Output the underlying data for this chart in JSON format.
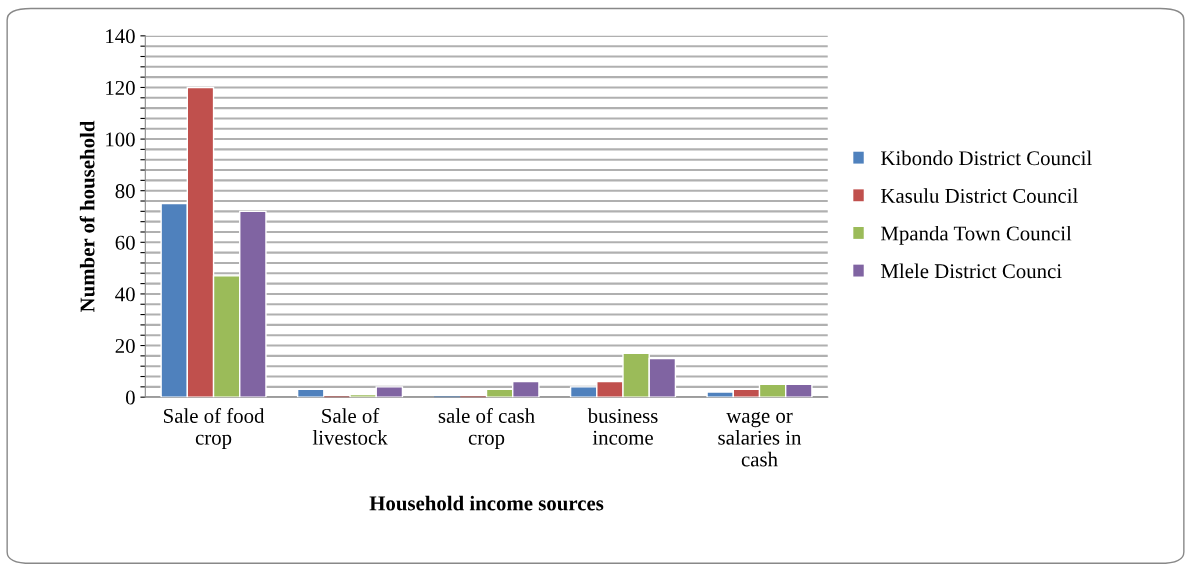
{
  "chart_data": {
    "type": "bar",
    "xlabel": "Household income sources",
    "ylabel": "Number of household",
    "categories": [
      "Sale of food\ncrop",
      "Sale of\nlivestock",
      "sale of cash\ncrop",
      "business\nincome",
      "wage or\nsalaries in\ncash"
    ],
    "series": [
      {
        "name": "Kibondo District Council",
        "color": "#4f81bd",
        "values": [
          75,
          3,
          0,
          4,
          2
        ]
      },
      {
        "name": "Kasulu District Council",
        "color": "#c0504d",
        "values": [
          120,
          0,
          0,
          6,
          3
        ]
      },
      {
        "name": "Mpanda Town Council",
        "color": "#9bbb59",
        "values": [
          47,
          1,
          3,
          17,
          5
        ]
      },
      {
        "name": "Mlele District Counci",
        "color": "#8064a2",
        "values": [
          72,
          4,
          6,
          15,
          5
        ]
      }
    ],
    "ylim": [
      0,
      140
    ],
    "yticks": [
      0,
      {
        "value": 4,
        "label": null
      },
      {
        "value": 8,
        "label": null
      },
      {
        "value": 12,
        "label": null
      },
      {
        "value": 16,
        "label": null
      },
      20,
      {
        "value": 24,
        "label": null
      },
      {
        "value": 28,
        "label": null
      },
      {
        "value": 32,
        "label": null
      },
      {
        "value": 36,
        "label": null
      },
      40,
      {
        "value": 44,
        "label": null
      },
      {
        "value": 48,
        "label": null
      },
      {
        "value": 52,
        "label": null
      },
      {
        "value": 56,
        "label": null
      },
      60,
      {
        "value": 64,
        "label": null
      },
      {
        "value": 68,
        "label": null
      },
      {
        "value": 72,
        "label": null
      },
      {
        "value": 76,
        "label": null
      },
      80,
      {
        "value": 84,
        "label": null
      },
      {
        "value": 88,
        "label": null
      },
      {
        "value": 92,
        "label": null
      },
      {
        "value": 96,
        "label": null
      },
      100,
      {
        "value": 104,
        "label": null
      },
      {
        "value": 108,
        "label": null
      },
      {
        "value": 112,
        "label": null
      },
      {
        "value": 116,
        "label": null
      },
      120,
      {
        "value": 124,
        "label": null
      },
      {
        "value": 128,
        "label": null
      },
      {
        "value": 132,
        "label": null
      },
      {
        "value": 136,
        "label": null
      },
      140
    ],
    "grid": "y",
    "legend": "right"
  }
}
